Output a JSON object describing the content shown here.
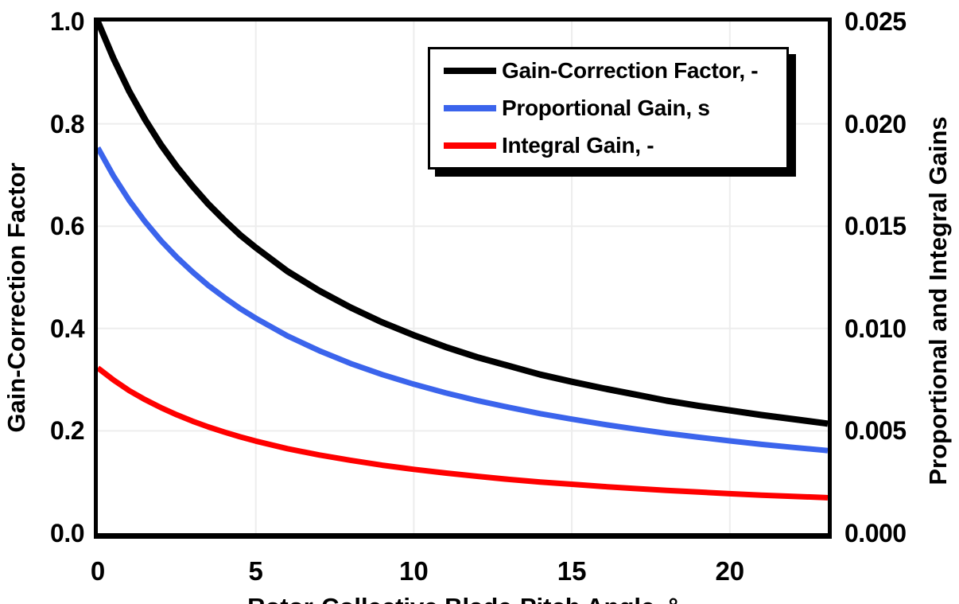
{
  "figure": {
    "left_axis_title": "Gain-Correction Factor",
    "right_axis_title": "Proportional and Integral Gains",
    "x_axis_title": "Rotor-Collective Blade-Pitch Angle, °"
  },
  "legend": {
    "position": "top-center",
    "items": [
      {
        "label": "Gain-Correction Factor, -",
        "color": "#000000"
      },
      {
        "label": "Proportional Gain, s",
        "color": "#3B64EC"
      },
      {
        "label": "Integral Gain, -",
        "color": "#FF0000"
      }
    ]
  },
  "colors": {
    "axis": "#000000",
    "grid": "#EDEDED",
    "series_black": "#000000",
    "series_blue": "#3B64EC",
    "series_red": "#FF0000"
  },
  "chart_data": {
    "type": "line",
    "title": "",
    "xlabel": "Rotor-Collective Blade-Pitch Angle, °",
    "grid": true,
    "x_range": [
      0,
      23.1
    ],
    "x_tick_values": [
      0,
      5,
      10,
      15,
      20
    ],
    "x_tick_labels": [
      "0",
      "5",
      "10",
      "15",
      "20"
    ],
    "x_grid_values": [
      5,
      10,
      15,
      20
    ],
    "y_left": {
      "label": "Gain-Correction Factor",
      "range": [
        0,
        1.0
      ],
      "tick_values": [
        1.0,
        0.8,
        0.6,
        0.4,
        0.2,
        0.0
      ],
      "tick_labels": [
        "1.0",
        "0.8",
        "0.6",
        "0.4",
        "0.2",
        "0.0"
      ],
      "grid_values": [
        0.8,
        0.6,
        0.4,
        0.2
      ]
    },
    "y_right": {
      "label": "Proportional and Integral Gains",
      "range": [
        0,
        0.025
      ],
      "tick_values": [
        1.0,
        0.8,
        0.6,
        0.4,
        0.2,
        0.0
      ],
      "tick_labels": [
        "0.025",
        "0.020",
        "0.015",
        "0.010",
        "0.005",
        "0.000"
      ]
    },
    "x": [
      0,
      0.5,
      1,
      1.5,
      2,
      2.5,
      3,
      3.5,
      4,
      4.5,
      5,
      6,
      7,
      8,
      9,
      10,
      11,
      12,
      13,
      14,
      15,
      16,
      17,
      18,
      19,
      20,
      21,
      22,
      23,
      23.1
    ],
    "series": [
      {
        "name": "Gain-Correction Factor, -",
        "axis": "left",
        "color": "#000000",
        "stroke_width": 8,
        "values": [
          1.0,
          0.927,
          0.863,
          0.808,
          0.759,
          0.716,
          0.678,
          0.643,
          0.612,
          0.583,
          0.558,
          0.512,
          0.474,
          0.441,
          0.412,
          0.387,
          0.364,
          0.344,
          0.327,
          0.31,
          0.296,
          0.283,
          0.271,
          0.259,
          0.249,
          0.24,
          0.231,
          0.223,
          0.215,
          0.214
        ]
      },
      {
        "name": "Proportional Gain, s",
        "axis": "right",
        "color": "#3B64EC",
        "stroke_width": 7,
        "values": [
          0.01883,
          0.01744,
          0.01625,
          0.01521,
          0.01429,
          0.01348,
          0.01276,
          0.0121,
          0.01152,
          0.01098,
          0.0105,
          0.00964,
          0.00892,
          0.00829,
          0.00775,
          0.00728,
          0.00686,
          0.00648,
          0.00615,
          0.00584,
          0.00557,
          0.00532,
          0.00509,
          0.00488,
          0.00469,
          0.00451,
          0.00434,
          0.00419,
          0.00405,
          0.00403
        ]
      },
      {
        "name": "Integral Gain, -",
        "axis": "right",
        "color": "#FF0000",
        "stroke_width": 7,
        "values": [
          0.00807,
          0.00748,
          0.00696,
          0.00652,
          0.00613,
          0.00578,
          0.00547,
          0.00519,
          0.00494,
          0.00471,
          0.0045,
          0.00413,
          0.00382,
          0.00356,
          0.00332,
          0.00312,
          0.00294,
          0.00278,
          0.00263,
          0.0025,
          0.00239,
          0.00228,
          0.00218,
          0.00209,
          0.00201,
          0.00193,
          0.00186,
          0.0018,
          0.00174,
          0.00173
        ]
      }
    ]
  }
}
